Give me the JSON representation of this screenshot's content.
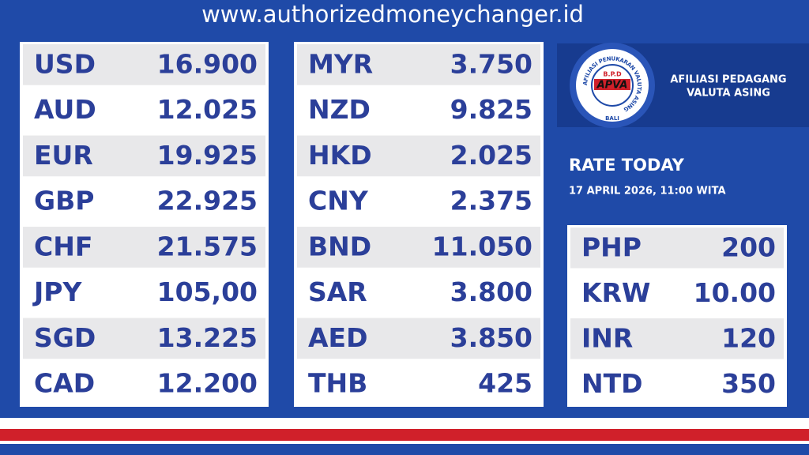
{
  "header": {
    "url": "www.authorizedmoneychanger.id"
  },
  "logo": {
    "arc_text": "AFILIASI PENUKARAN VALUTA ASING",
    "top": "B.P.D",
    "mark": "APVA",
    "bottom": "BALI",
    "name_line1": "AFILIASI PEDAGANG",
    "name_line2": "VALUTA ASING"
  },
  "rate_info": {
    "title": "RATE TODAY",
    "date": "17 APRIL 2026, 11:00 WITA"
  },
  "tables": [
    {
      "rows": [
        [
          "USD",
          "16.900"
        ],
        [
          "AUD",
          "12.025"
        ],
        [
          "EUR",
          "19.925"
        ],
        [
          "GBP",
          "22.925"
        ],
        [
          "CHF",
          "21.575"
        ],
        [
          "JPY",
          "105,00"
        ],
        [
          "SGD",
          "13.225"
        ],
        [
          "CAD",
          "12.200"
        ]
      ]
    },
    {
      "rows": [
        [
          "MYR",
          "3.750"
        ],
        [
          "NZD",
          "9.825"
        ],
        [
          "HKD",
          "2.025"
        ],
        [
          "CNY",
          "2.375"
        ],
        [
          "BND",
          "11.050"
        ],
        [
          "SAR",
          "3.800"
        ],
        [
          "AED",
          "3.850"
        ],
        [
          "THB",
          "425"
        ]
      ]
    },
    {
      "rows": [
        [
          "PHP",
          "200"
        ],
        [
          "KRW",
          "10.00"
        ],
        [
          "INR",
          "120"
        ],
        [
          "NTD",
          "350"
        ]
      ]
    }
  ]
}
